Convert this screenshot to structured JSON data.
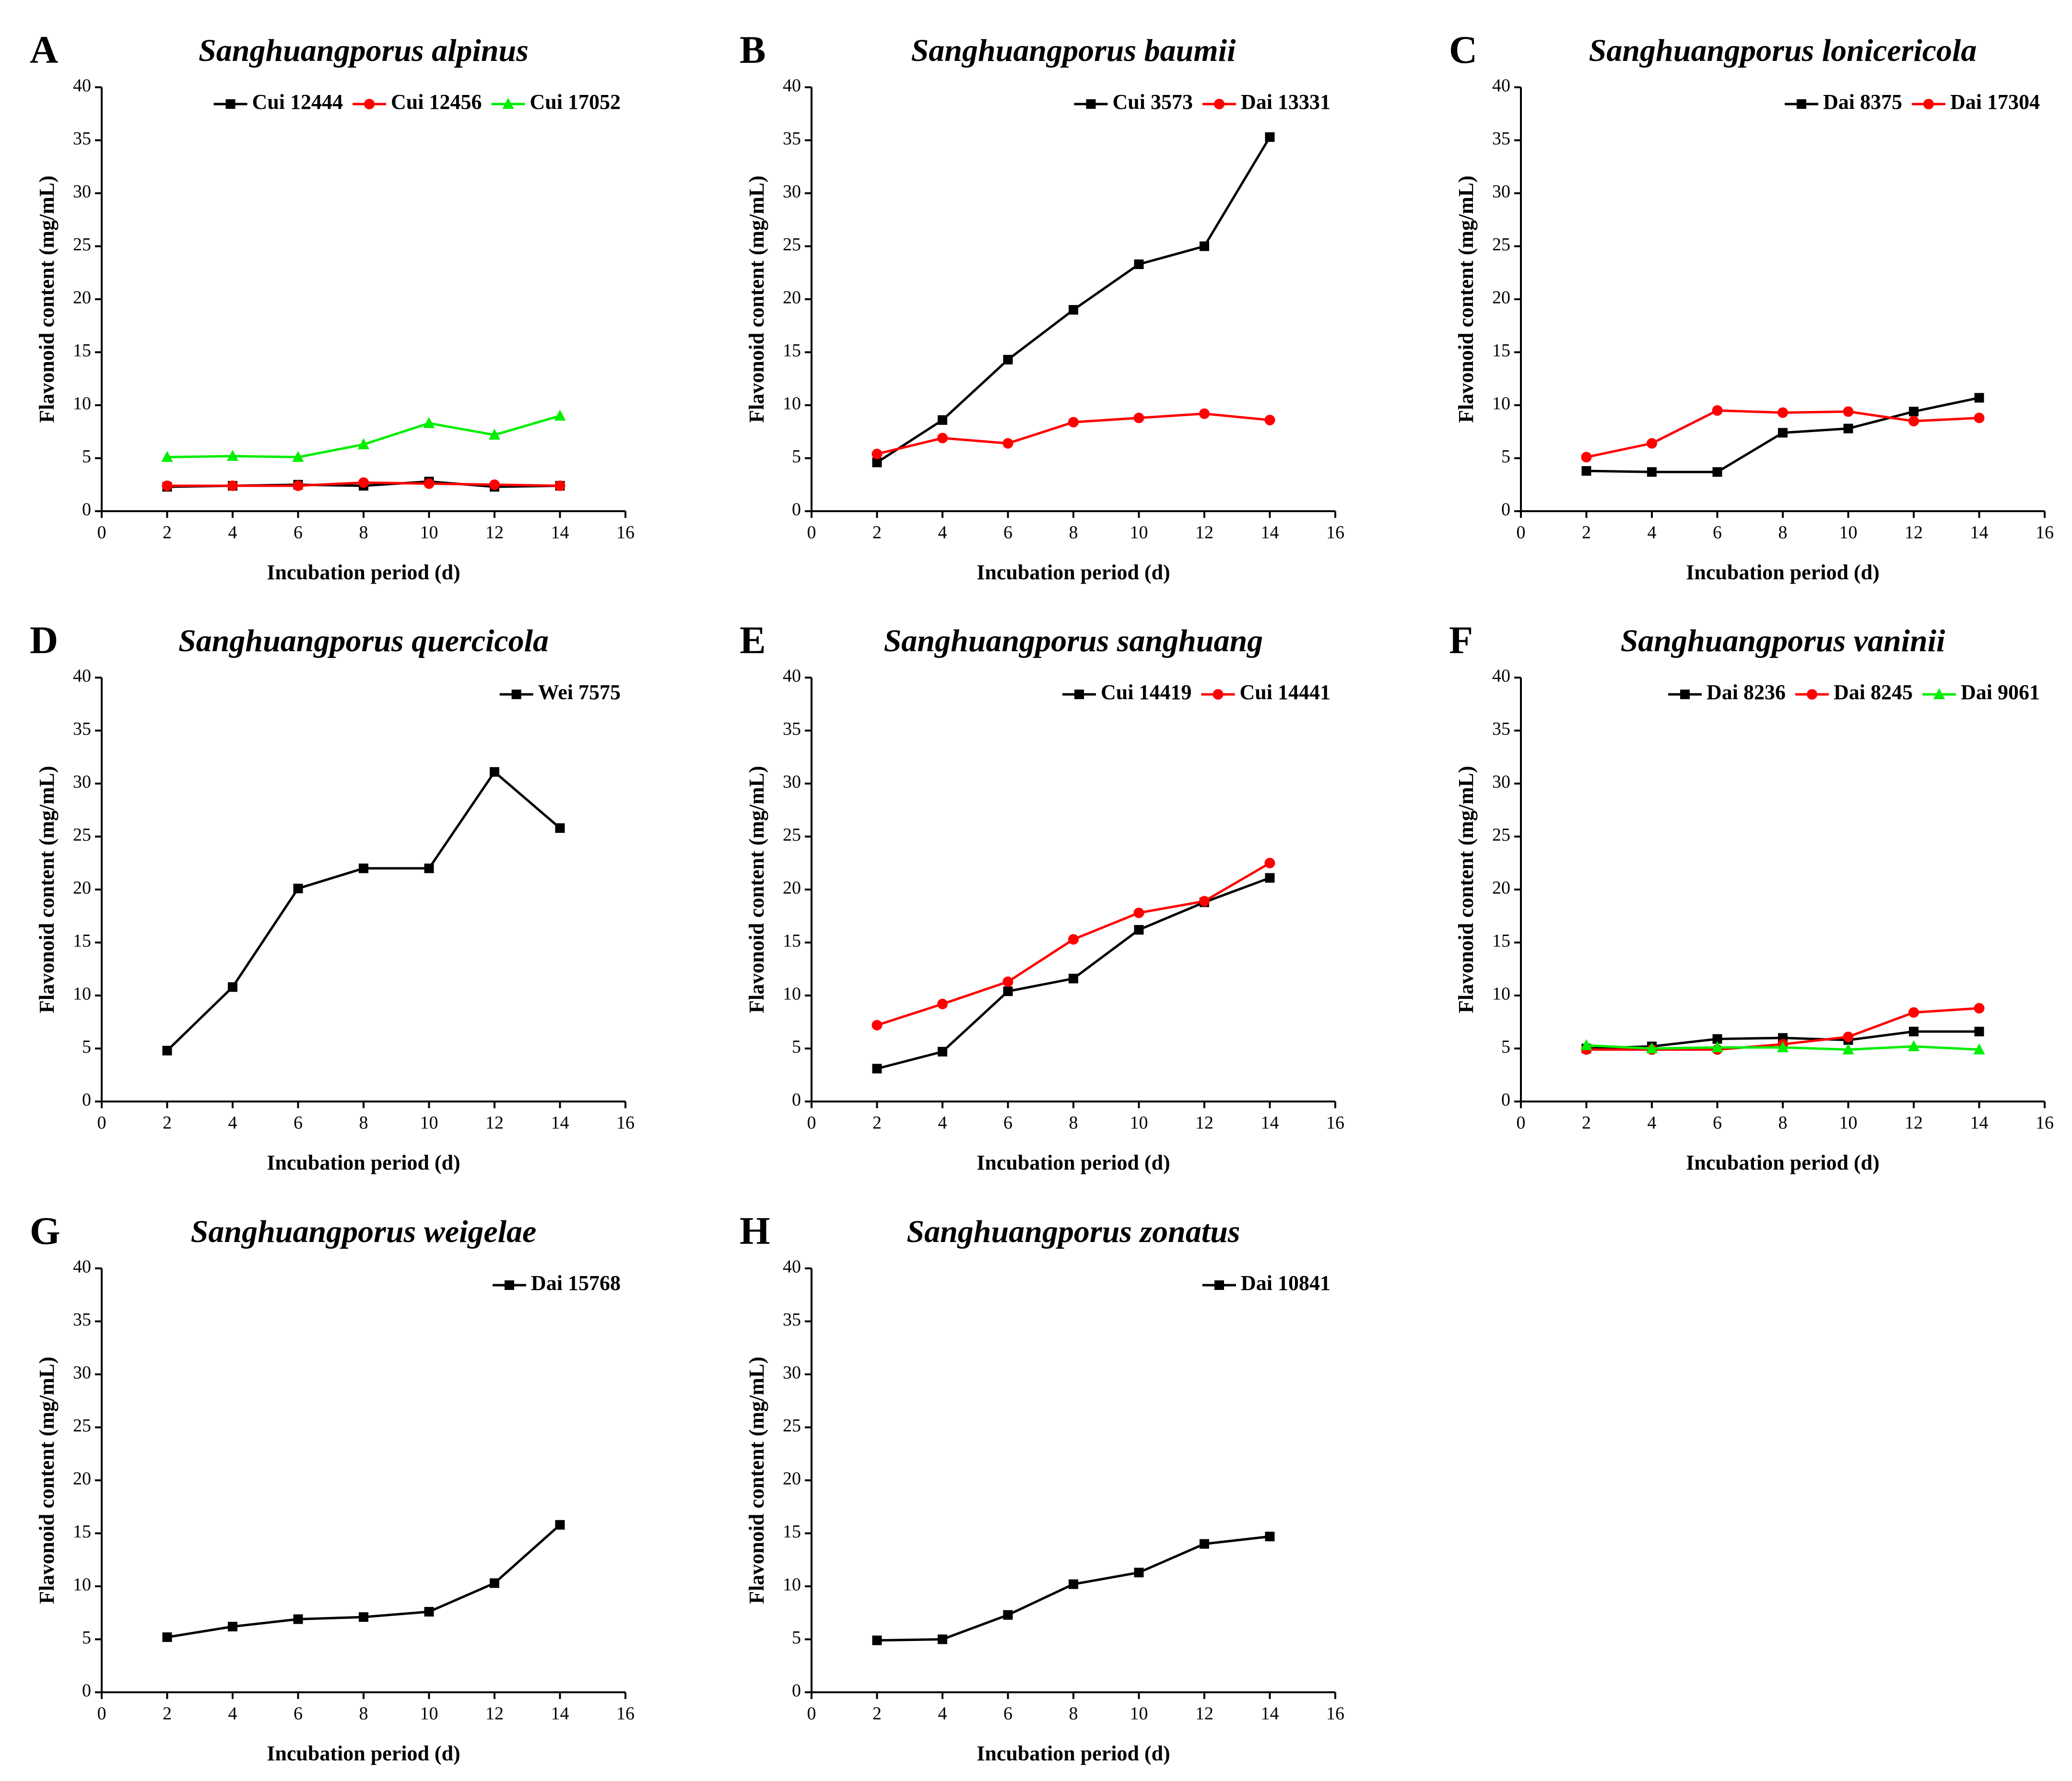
{
  "chart_data": [
    {
      "type": "line",
      "panel": "A",
      "title": "Sanghuangporus alpinus",
      "x_label": "Incubation period (d)",
      "y_label": "Flavonoid content (mg/mL)",
      "x": [
        2,
        4,
        6,
        8,
        10,
        12,
        14
      ],
      "xlim": [
        0,
        16
      ],
      "xticks": [
        0,
        2,
        4,
        6,
        8,
        10,
        12,
        14,
        16
      ],
      "ylim": [
        0,
        40
      ],
      "yticks": [
        0,
        5,
        10,
        15,
        20,
        25,
        30,
        35,
        40
      ],
      "series": [
        {
          "name": "Cui 12444",
          "color": "#000000",
          "marker": "square",
          "values": [
            2.3,
            2.4,
            2.5,
            2.4,
            2.8,
            2.3,
            2.4
          ]
        },
        {
          "name": "Cui 12456",
          "color": "#ff0000",
          "marker": "circle",
          "values": [
            2.4,
            2.4,
            2.4,
            2.7,
            2.6,
            2.5,
            2.4
          ]
        },
        {
          "name": "Cui 17052",
          "color": "#00ee00",
          "marker": "triangle",
          "values": [
            5.1,
            5.2,
            5.1,
            6.3,
            8.3,
            7.2,
            9.0
          ]
        }
      ]
    },
    {
      "type": "line",
      "panel": "B",
      "title": "Sanghuangporus baumii",
      "x_label": "Incubation period (d)",
      "y_label": "Flavonoid content (mg/mL)",
      "x": [
        2,
        4,
        6,
        8,
        10,
        12,
        14
      ],
      "xlim": [
        0,
        16
      ],
      "xticks": [
        0,
        2,
        4,
        6,
        8,
        10,
        12,
        14,
        16
      ],
      "ylim": [
        0,
        40
      ],
      "yticks": [
        0,
        5,
        10,
        15,
        20,
        25,
        30,
        35,
        40
      ],
      "series": [
        {
          "name": "Cui 3573",
          "color": "#000000",
          "marker": "square",
          "values": [
            4.6,
            8.6,
            14.3,
            19.0,
            23.3,
            25.0,
            35.3
          ]
        },
        {
          "name": "Dai 13331",
          "color": "#ff0000",
          "marker": "circle",
          "values": [
            5.4,
            6.9,
            6.4,
            8.4,
            8.8,
            9.2,
            8.6
          ]
        }
      ]
    },
    {
      "type": "line",
      "panel": "C",
      "title": "Sanghuangporus lonicericola",
      "x_label": "Incubation period (d)",
      "y_label": "Flavonoid content (mg/mL)",
      "x": [
        2,
        4,
        6,
        8,
        10,
        12,
        14
      ],
      "xlim": [
        0,
        16
      ],
      "xticks": [
        0,
        2,
        4,
        6,
        8,
        10,
        12,
        14,
        16
      ],
      "ylim": [
        0,
        40
      ],
      "yticks": [
        0,
        5,
        10,
        15,
        20,
        25,
        30,
        35,
        40
      ],
      "series": [
        {
          "name": "Dai 8375",
          "color": "#000000",
          "marker": "square",
          "values": [
            3.8,
            3.7,
            3.7,
            7.4,
            7.8,
            9.4,
            10.7
          ]
        },
        {
          "name": "Dai 17304",
          "color": "#ff0000",
          "marker": "circle",
          "values": [
            5.1,
            6.4,
            9.5,
            9.3,
            9.4,
            8.5,
            8.8
          ]
        }
      ]
    },
    {
      "type": "line",
      "panel": "D",
      "title": "Sanghuangporus quercicola",
      "x_label": "Incubation period (d)",
      "y_label": "Flavonoid content (mg/mL)",
      "x": [
        2,
        4,
        6,
        8,
        10,
        12,
        14
      ],
      "xlim": [
        0,
        16
      ],
      "xticks": [
        0,
        2,
        4,
        6,
        8,
        10,
        12,
        14,
        16
      ],
      "ylim": [
        0,
        40
      ],
      "yticks": [
        0,
        5,
        10,
        15,
        20,
        25,
        30,
        35,
        40
      ],
      "series": [
        {
          "name": "Wei 7575",
          "color": "#000000",
          "marker": "square",
          "values": [
            4.8,
            10.8,
            20.1,
            22.0,
            22.0,
            31.1,
            25.8
          ]
        }
      ]
    },
    {
      "type": "line",
      "panel": "E",
      "title": "Sanghuangporus sanghuang",
      "x_label": "Incubation period (d)",
      "y_label": "Flavonoid content (mg/mL)",
      "x": [
        2,
        4,
        6,
        8,
        10,
        12,
        14
      ],
      "xlim": [
        0,
        16
      ],
      "xticks": [
        0,
        2,
        4,
        6,
        8,
        10,
        12,
        14,
        16
      ],
      "ylim": [
        0,
        40
      ],
      "yticks": [
        0,
        5,
        10,
        15,
        20,
        25,
        30,
        35,
        40
      ],
      "series": [
        {
          "name": "Cui 14419",
          "color": "#000000",
          "marker": "square",
          "values": [
            3.1,
            4.7,
            10.4,
            11.6,
            16.2,
            18.8,
            21.1
          ]
        },
        {
          "name": "Cui 14441",
          "color": "#ff0000",
          "marker": "circle",
          "values": [
            7.2,
            9.2,
            11.3,
            15.3,
            17.8,
            18.9,
            22.5
          ]
        }
      ]
    },
    {
      "type": "line",
      "panel": "F",
      "title": "Sanghuangporus vaninii",
      "x_label": "Incubation period (d)",
      "y_label": "Flavonoid content (mg/mL)",
      "x": [
        2,
        4,
        6,
        8,
        10,
        12,
        14
      ],
      "xlim": [
        0,
        16
      ],
      "xticks": [
        0,
        2,
        4,
        6,
        8,
        10,
        12,
        14,
        16
      ],
      "ylim": [
        0,
        40
      ],
      "yticks": [
        0,
        5,
        10,
        15,
        20,
        25,
        30,
        35,
        40
      ],
      "series": [
        {
          "name": "Dai 8236",
          "color": "#000000",
          "marker": "square",
          "values": [
            5.0,
            5.2,
            5.9,
            6.0,
            5.8,
            6.6,
            6.6
          ]
        },
        {
          "name": "Dai 8245",
          "color": "#ff0000",
          "marker": "circle",
          "values": [
            4.9,
            4.9,
            4.9,
            5.4,
            6.1,
            8.4,
            8.8
          ]
        },
        {
          "name": "Dai 9061",
          "color": "#00ee00",
          "marker": "triangle",
          "values": [
            5.3,
            5.0,
            5.1,
            5.1,
            4.9,
            5.2,
            4.9
          ]
        }
      ]
    },
    {
      "type": "line",
      "panel": "G",
      "title": "Sanghuangporus weigelae",
      "x_label": "Incubation period (d)",
      "y_label": "Flavonoid content (mg/mL)",
      "x": [
        2,
        4,
        6,
        8,
        10,
        12,
        14
      ],
      "xlim": [
        0,
        16
      ],
      "xticks": [
        0,
        2,
        4,
        6,
        8,
        10,
        12,
        14,
        16
      ],
      "ylim": [
        0,
        40
      ],
      "yticks": [
        0,
        5,
        10,
        15,
        20,
        25,
        30,
        35,
        40
      ],
      "series": [
        {
          "name": "Dai 15768",
          "color": "#000000",
          "marker": "square",
          "values": [
            5.2,
            6.2,
            6.9,
            7.1,
            7.6,
            10.3,
            15.8
          ]
        }
      ]
    },
    {
      "type": "line",
      "panel": "H",
      "title": "Sanghuangporus zonatus",
      "x_label": "Incubation period (d)",
      "y_label": "Flavonoid content (mg/mL)",
      "x": [
        2,
        4,
        6,
        8,
        10,
        12,
        14
      ],
      "xlim": [
        0,
        16
      ],
      "xticks": [
        0,
        2,
        4,
        6,
        8,
        10,
        12,
        14,
        16
      ],
      "ylim": [
        0,
        40
      ],
      "yticks": [
        0,
        5,
        10,
        15,
        20,
        25,
        30,
        35,
        40
      ],
      "series": [
        {
          "name": "Dai 10841",
          "color": "#000000",
          "marker": "square",
          "values": [
            4.9,
            5.0,
            7.3,
            10.2,
            11.3,
            14.0,
            14.7
          ]
        }
      ]
    }
  ]
}
